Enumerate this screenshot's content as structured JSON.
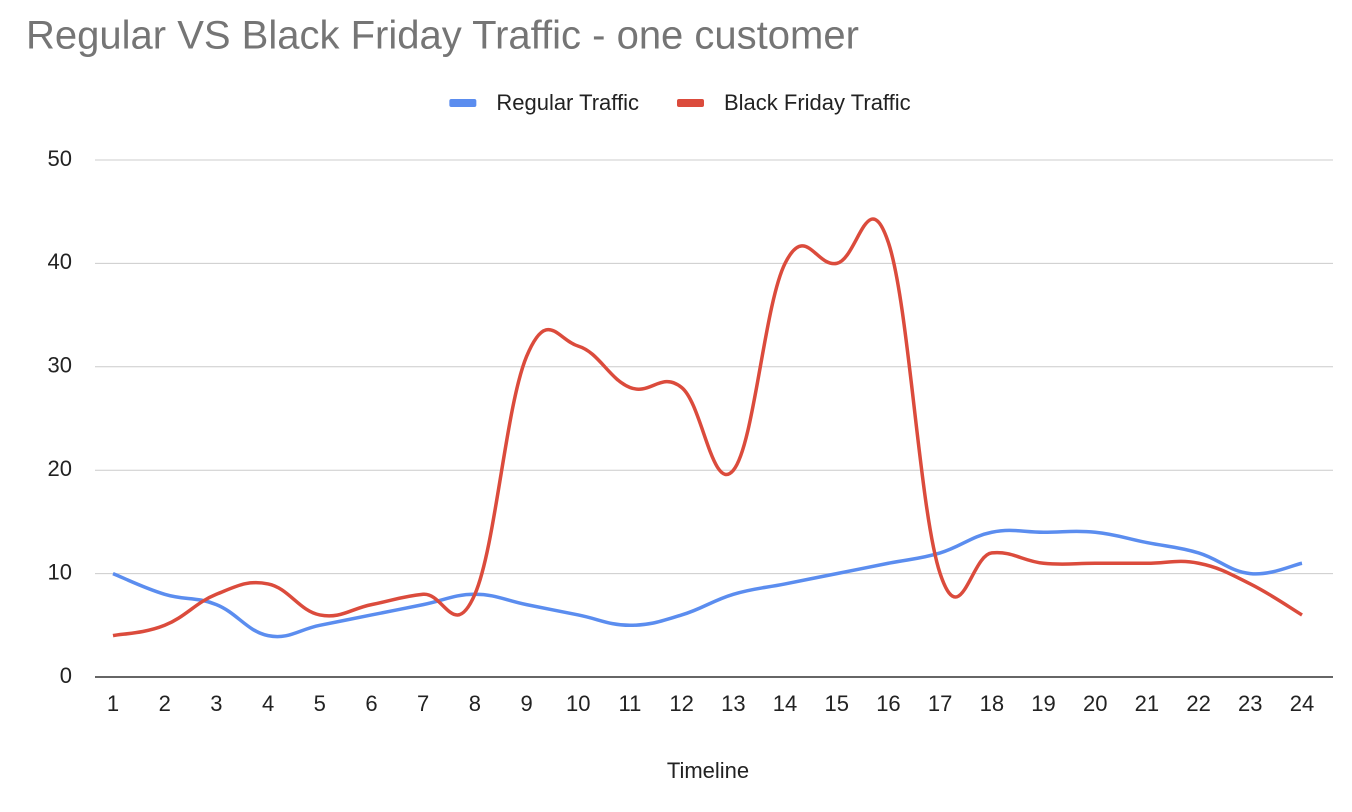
{
  "chart_data": {
    "type": "line",
    "title": "Regular VS Black Friday Traffic - one customer",
    "x_label": "Timeline",
    "categories": [
      "1",
      "2",
      "3",
      "4",
      "5",
      "6",
      "7",
      "8",
      "9",
      "10",
      "11",
      "12",
      "13",
      "14",
      "15",
      "16",
      "17",
      "18",
      "19",
      "20",
      "21",
      "22",
      "23",
      "24"
    ],
    "series": [
      {
        "name": "Regular Traffic",
        "color": "#5b8def",
        "values": [
          10,
          8,
          7,
          4,
          5,
          6,
          7,
          8,
          7,
          6,
          5,
          6,
          8,
          9,
          10,
          11,
          12,
          14,
          14,
          14,
          13,
          12,
          10,
          11
        ]
      },
      {
        "name": "Black Friday Traffic",
        "color": "#db4b3c",
        "values": [
          4,
          5,
          8,
          9,
          6,
          7,
          8,
          8,
          31,
          32,
          28,
          28,
          20,
          40,
          40,
          42,
          10,
          12,
          11,
          11,
          11,
          11,
          9,
          6
        ]
      }
    ],
    "ylim": [
      0,
      50
    ],
    "yticks": [
      0,
      10,
      20,
      30,
      40,
      50
    ],
    "grid": true,
    "legend": "top"
  }
}
